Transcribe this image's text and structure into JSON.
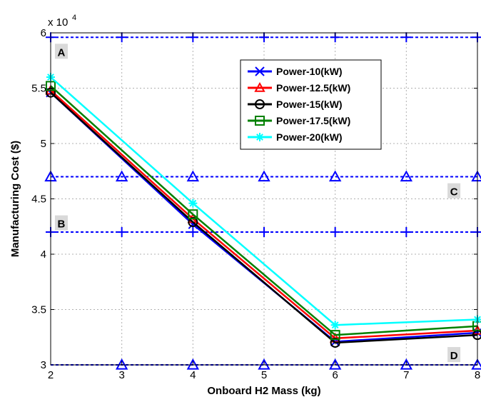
{
  "chart_data": {
    "type": "line",
    "title": "",
    "xlabel": "Onboard H2 Mass (kg)",
    "ylabel": "Manufacturing Cost ($)",
    "y_multiplier_label": "x 10",
    "y_multiplier_exp": "4",
    "xlim": [
      2,
      8
    ],
    "ylim": [
      3,
      6
    ],
    "xticks": [
      2,
      3,
      4,
      5,
      6,
      7,
      8
    ],
    "yticks": [
      3,
      3.5,
      4,
      4.5,
      5,
      5.5,
      6
    ],
    "ytick_labels": [
      "3",
      "3.5",
      "4",
      "4.5",
      "5",
      "5.5",
      "6"
    ],
    "grid": true,
    "legend_position": "top-right",
    "x": [
      2,
      4,
      6,
      8
    ],
    "series": [
      {
        "name": "Power-10(kW)",
        "color": "#0000ff",
        "marker": "x",
        "values": [
          5.46,
          4.27,
          3.21,
          3.29
        ]
      },
      {
        "name": "Power-12.5(kW)",
        "color": "#ff0000",
        "marker": "triangle",
        "values": [
          5.48,
          4.32,
          3.24,
          3.31
        ]
      },
      {
        "name": "Power-15(kW)",
        "color": "#000000",
        "marker": "circle",
        "values": [
          5.46,
          4.29,
          3.2,
          3.27
        ]
      },
      {
        "name": "Power-17.5(kW)",
        "color": "#008000",
        "marker": "square",
        "values": [
          5.52,
          4.36,
          3.27,
          3.35
        ]
      },
      {
        "name": "Power-20(kW)",
        "color": "#00ffff",
        "marker": "star",
        "values": [
          5.6,
          4.46,
          3.36,
          3.41
        ]
      }
    ],
    "reference_lines": [
      {
        "y": 5.96,
        "color": "#0000ff",
        "marker": "plus"
      },
      {
        "y": 4.7,
        "color": "#0000ff",
        "marker": "triangle"
      },
      {
        "y": 4.2,
        "color": "#0000ff",
        "marker": "plus"
      },
      {
        "y": 3.0,
        "color": "#0000ff",
        "marker": "triangle"
      }
    ],
    "region_labels": [
      {
        "text": "A",
        "x": 2.15,
        "y": 5.83
      },
      {
        "text": "B",
        "x": 2.15,
        "y": 4.28
      },
      {
        "text": "C",
        "x": 7.67,
        "y": 4.57
      },
      {
        "text": "D",
        "x": 7.67,
        "y": 3.09
      }
    ]
  }
}
